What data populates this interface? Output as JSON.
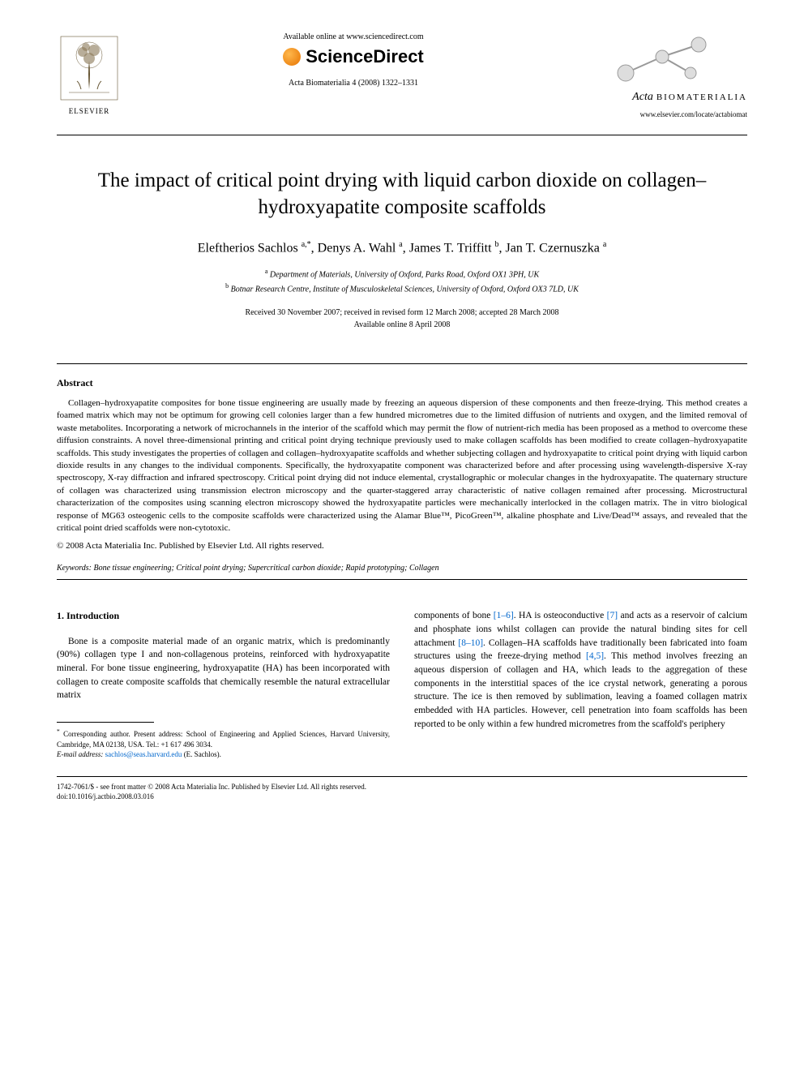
{
  "header": {
    "publisher_name": "ELSEVIER",
    "available_online": "Available online at www.sciencedirect.com",
    "sciencedirect": "ScienceDirect",
    "journal_ref": "Acta Biomaterialia 4 (2008) 1322–1331",
    "journal_name_italic": "Acta",
    "journal_name_caps": "BIOMATERIALIA",
    "journal_url": "www.elsevier.com/locate/actabiomat"
  },
  "title": "The impact of critical point drying with liquid carbon dioxide on collagen–hydroxyapatite composite scaffolds",
  "authors_html": "Eleftherios Sachlos <sup>a,*</sup>, Denys A. Wahl <sup>a</sup>, James T. Triffitt <sup>b</sup>, Jan T. Czernuszka <sup>a</sup>",
  "affiliations": {
    "a": "Department of Materials, University of Oxford, Parks Road, Oxford OX1 3PH, UK",
    "b": "Botnar Research Centre, Institute of Musculoskeletal Sciences, University of Oxford, Oxford OX3 7LD, UK"
  },
  "dates": {
    "line1": "Received 30 November 2007; received in revised form 12 March 2008; accepted 28 March 2008",
    "line2": "Available online 8 April 2008"
  },
  "abstract": {
    "heading": "Abstract",
    "body": "Collagen–hydroxyapatite composites for bone tissue engineering are usually made by freezing an aqueous dispersion of these components and then freeze-drying. This method creates a foamed matrix which may not be optimum for growing cell colonies larger than a few hundred micrometres due to the limited diffusion of nutrients and oxygen, and the limited removal of waste metabolites. Incorporating a network of microchannels in the interior of the scaffold which may permit the flow of nutrient-rich media has been proposed as a method to overcome these diffusion constraints. A novel three-dimensional printing and critical point drying technique previously used to make collagen scaffolds has been modified to create collagen–hydroxyapatite scaffolds. This study investigates the properties of collagen and collagen–hydroxyapatite scaffolds and whether subjecting collagen and hydroxyapatite to critical point drying with liquid carbon dioxide results in any changes to the individual components. Specifically, the hydroxyapatite component was characterized before and after processing using wavelength-dispersive X-ray spectroscopy, X-ray diffraction and infrared spectroscopy. Critical point drying did not induce elemental, crystallographic or molecular changes in the hydroxyapatite. The quaternary structure of collagen was characterized using transmission electron microscopy and the quarter-staggered array characteristic of native collagen remained after processing. Microstructural characterization of the composites using scanning electron microscopy showed the hydroxyapatite particles were mechanically interlocked in the collagen matrix. The in vitro biological response of MG63 osteogenic cells to the composite scaffolds were characterized using the Alamar Blue™, PicoGreen™, alkaline phosphate and Live/Dead™ assays, and revealed that the critical point dried scaffolds were non-cytotoxic.",
    "copyright": "© 2008 Acta Materialia Inc. Published by Elsevier Ltd. All rights reserved."
  },
  "keywords": {
    "label": "Keywords:",
    "list": "Bone tissue engineering; Critical point drying; Supercritical carbon dioxide; Rapid prototyping; Collagen"
  },
  "intro": {
    "heading": "1. Introduction",
    "col1": "Bone is a composite material made of an organic matrix, which is predominantly (90%) collagen type I and non-collagenous proteins, reinforced with hydroxyapatite mineral. For bone tissue engineering, hydroxyapatite (HA) has been incorporated with collagen to create composite scaffolds that chemically resemble the natural extracellular matrix",
    "col2_pre": "components of bone ",
    "ref1": "[1–6]",
    "col2_mid1": ". HA is osteoconductive ",
    "ref2": "[7]",
    "col2_mid2": " and acts as a reservoir of calcium and phosphate ions whilst collagen can provide the natural binding sites for cell attachment ",
    "ref3": "[8–10]",
    "col2_mid3": ". Collagen–HA scaffolds have traditionally been fabricated into foam structures using the freeze-drying method ",
    "ref4": "[4,5]",
    "col2_post": ". This method involves freezing an aqueous dispersion of collagen and HA, which leads to the aggregation of these components in the interstitial spaces of the ice crystal network, generating a porous structure. The ice is then removed by sublimation, leaving a foamed collagen matrix embedded with HA particles. However, cell penetration into foam scaffolds has been reported to be only within a few hundred micrometres from the scaffold's periphery"
  },
  "footnote": {
    "corresponding": "Corresponding author. Present address: School of Engineering and Applied Sciences, Harvard University, Cambridge, MA 02138, USA. Tel.: +1 617 496 3034.",
    "email_label": "E-mail address:",
    "email": "sachlos@seas.harvard.edu",
    "email_author": "(E. Sachlos)."
  },
  "footer": {
    "line1": "1742-7061/$ - see front matter © 2008 Acta Materialia Inc. Published by Elsevier Ltd. All rights reserved.",
    "line2": "doi:10.1016/j.actbio.2008.03.016"
  },
  "colors": {
    "link": "#0066cc",
    "text": "#000000",
    "background": "#ffffff"
  }
}
